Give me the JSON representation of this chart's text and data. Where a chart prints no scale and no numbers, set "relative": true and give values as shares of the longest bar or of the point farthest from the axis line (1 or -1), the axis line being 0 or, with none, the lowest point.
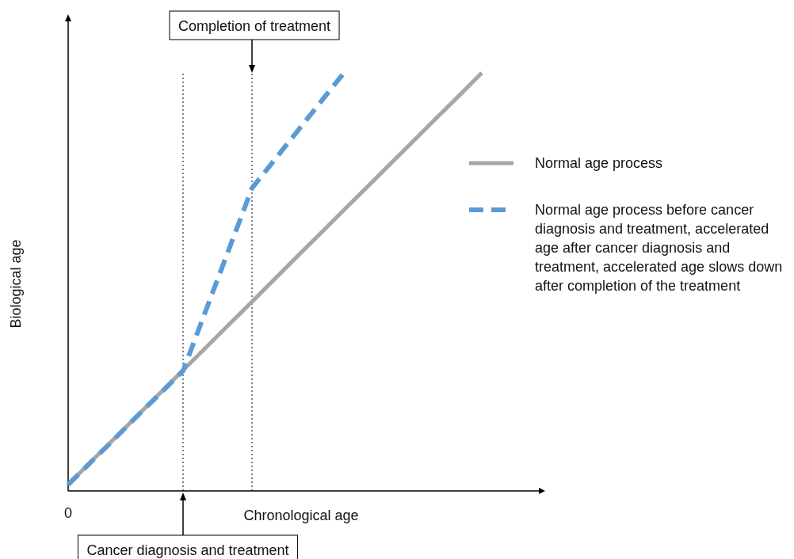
{
  "chart_data": {
    "type": "line",
    "relative": true,
    "xlabel": "Chronological age",
    "ylabel": "Biological age",
    "annotations": [
      "0",
      "Cancer diagnosis and treatment",
      "Completion of treatment"
    ],
    "legend": "right",
    "categories": [
      null,
      null,
      null,
      null,
      null,
      null,
      null,
      null,
      null,
      null,
      null,
      null,
      null,
      null,
      null,
      null,
      null,
      null,
      null
    ],
    "series": [
      {
        "name": "Normal age process",
        "color": "#a6a6a6",
        "values": [
          0,
          0.056,
          0.111,
          0.167,
          0.222,
          0.278,
          0.333,
          0.389,
          0.444,
          0.5,
          0.556,
          0.611,
          0.667,
          0.722,
          0.778,
          0.833,
          0.889,
          0.944,
          1
        ]
      },
      {
        "name": "Normal age process before cancer diagnosis and treatment, accelerated age after cancer diagnosis and treatment, accelerated age slows down after completion of the treatment",
        "color": "#5b9bd5",
        "line_style": "dashed",
        "values": [
          0,
          0.055,
          0.11,
          0.166,
          0.221,
          0.276,
          0.424,
          0.572,
          0.72,
          0.79,
          0.86,
          0.93,
          1,
          null,
          null,
          null,
          null,
          null,
          null
        ]
      }
    ]
  }
}
